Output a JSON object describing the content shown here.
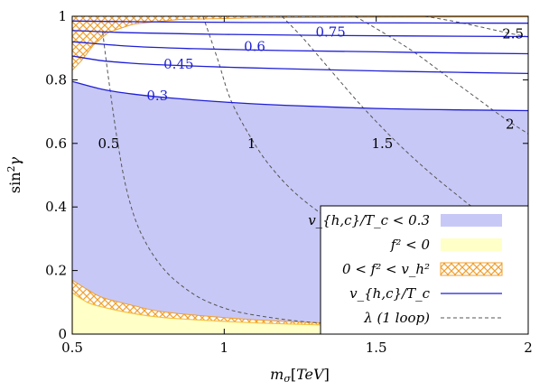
{
  "chart_data": {
    "type": "line",
    "title": "",
    "xlabel": "m_σ[TeV]",
    "ylabel": "sin²γ",
    "xlim": [
      0.5,
      2
    ],
    "ylim": [
      0,
      1
    ],
    "xticks": [
      "0.5",
      "1",
      "1.5",
      "2"
    ],
    "yticks": [
      "0",
      "0.2",
      "0.4",
      "0.6",
      "0.8",
      "1"
    ],
    "colors": {
      "excluded_fill": "#c8c8f7",
      "yellow_fill": "#ffffc8",
      "hatch": "#f0a030",
      "contour": "#1f1fd6",
      "dashed": "#555555"
    },
    "contours_v_over_Tc": [
      {
        "label": "0.3",
        "label_x": 0.78,
        "label_y": 0.75,
        "points": [
          [
            0.5,
            0.795
          ],
          [
            0.6,
            0.77
          ],
          [
            0.7,
            0.755
          ],
          [
            0.8,
            0.745
          ],
          [
            1.0,
            0.73
          ],
          [
            1.2,
            0.72
          ],
          [
            1.5,
            0.71
          ],
          [
            1.8,
            0.705
          ],
          [
            2.0,
            0.703
          ]
        ]
      },
      {
        "label": "0.45",
        "label_x": 0.85,
        "label_y": 0.85,
        "points": [
          [
            0.5,
            0.875
          ],
          [
            0.6,
            0.86
          ],
          [
            0.7,
            0.852
          ],
          [
            0.8,
            0.847
          ],
          [
            1.0,
            0.84
          ],
          [
            1.2,
            0.835
          ],
          [
            1.5,
            0.828
          ],
          [
            1.8,
            0.823
          ],
          [
            2.0,
            0.82
          ]
        ]
      },
      {
        "label": "0.6",
        "label_x": 1.1,
        "label_y": 0.905,
        "points": [
          [
            0.5,
            0.92
          ],
          [
            0.7,
            0.905
          ],
          [
            0.9,
            0.898
          ],
          [
            1.2,
            0.892
          ],
          [
            1.5,
            0.888
          ],
          [
            1.8,
            0.884
          ],
          [
            2.0,
            0.882
          ]
        ]
      },
      {
        "label": "0.75",
        "label_x": 1.35,
        "label_y": 0.95,
        "points": [
          [
            0.5,
            0.955
          ],
          [
            0.7,
            0.948
          ],
          [
            1.0,
            0.943
          ],
          [
            1.3,
            0.94
          ],
          [
            1.6,
            0.938
          ],
          [
            2.0,
            0.936
          ]
        ]
      },
      {
        "label": "",
        "label_x": 0,
        "label_y": 0,
        "points": [
          [
            0.5,
            0.985
          ],
          [
            0.8,
            0.982
          ],
          [
            1.2,
            0.98
          ],
          [
            1.6,
            0.979
          ],
          [
            2.0,
            0.978
          ]
        ]
      }
    ],
    "contours_lambda": [
      {
        "label": "0.5",
        "label_x": 0.62,
        "label_y": 0.6,
        "points": [
          [
            0.6,
            0.95
          ],
          [
            0.62,
            0.8
          ],
          [
            0.65,
            0.6
          ],
          [
            0.68,
            0.45
          ],
          [
            0.72,
            0.33
          ],
          [
            0.78,
            0.23
          ],
          [
            0.85,
            0.16
          ],
          [
            0.95,
            0.1
          ],
          [
            1.1,
            0.06
          ],
          [
            1.4,
            0.03
          ],
          [
            2.0,
            0.018
          ]
        ]
      },
      {
        "label": "1",
        "label_x": 1.09,
        "label_y": 0.6,
        "points": [
          [
            0.93,
            1.0
          ],
          [
            0.98,
            0.86
          ],
          [
            1.02,
            0.74
          ],
          [
            1.08,
            0.63
          ],
          [
            1.15,
            0.53
          ],
          [
            1.25,
            0.43
          ],
          [
            1.4,
            0.33
          ],
          [
            1.6,
            0.24
          ],
          [
            1.8,
            0.18
          ],
          [
            2.0,
            0.14
          ]
        ]
      },
      {
        "label": "1.5",
        "label_x": 1.52,
        "label_y": 0.6,
        "points": [
          [
            1.19,
            1.0
          ],
          [
            1.26,
            0.93
          ],
          [
            1.35,
            0.83
          ],
          [
            1.45,
            0.72
          ],
          [
            1.55,
            0.62
          ],
          [
            1.65,
            0.53
          ],
          [
            1.75,
            0.45
          ],
          [
            1.85,
            0.38
          ],
          [
            2.0,
            0.32
          ]
        ]
      },
      {
        "label": "2",
        "label_x": 1.94,
        "label_y": 0.66,
        "points": [
          [
            1.43,
            1.0
          ],
          [
            1.52,
            0.95
          ],
          [
            1.62,
            0.89
          ],
          [
            1.72,
            0.82
          ],
          [
            1.82,
            0.75
          ],
          [
            1.92,
            0.68
          ],
          [
            2.0,
            0.63
          ]
        ]
      },
      {
        "label": "2.5",
        "label_x": 1.95,
        "label_y": 0.945,
        "points": [
          [
            1.66,
            1.0
          ],
          [
            1.75,
            0.985
          ],
          [
            1.85,
            0.965
          ],
          [
            1.93,
            0.948
          ],
          [
            2.0,
            0.935
          ]
        ]
      }
    ],
    "excluded_region_top": [
      [
        0.5,
        0.795
      ],
      [
        0.6,
        0.77
      ],
      [
        0.7,
        0.755
      ],
      [
        0.8,
        0.745
      ],
      [
        1.0,
        0.73
      ],
      [
        1.2,
        0.72
      ],
      [
        1.5,
        0.71
      ],
      [
        1.8,
        0.705
      ],
      [
        2.0,
        0.703
      ]
    ],
    "yellow_region_top": [
      [
        0.5,
        0.13
      ],
      [
        0.55,
        0.1
      ],
      [
        0.6,
        0.085
      ],
      [
        0.7,
        0.065
      ],
      [
        0.8,
        0.052
      ],
      [
        1.0,
        0.04
      ],
      [
        1.2,
        0.032
      ],
      [
        1.5,
        0.025
      ],
      [
        2.0,
        0.02
      ]
    ],
    "hatch_lower_top": [
      [
        0.5,
        0.17
      ],
      [
        0.55,
        0.14
      ],
      [
        0.6,
        0.115
      ],
      [
        0.7,
        0.09
      ],
      [
        0.8,
        0.07
      ],
      [
        1.0,
        0.052
      ],
      [
        1.2,
        0.04
      ],
      [
        1.5,
        0.03
      ],
      [
        2.0,
        0.023
      ]
    ],
    "hatch_upper_left": [
      [
        0.5,
        1.0
      ],
      [
        0.5,
        0.83
      ],
      [
        0.53,
        0.86
      ],
      [
        0.57,
        0.91
      ],
      [
        0.62,
        0.95
      ],
      [
        0.7,
        0.975
      ],
      [
        0.85,
        0.99
      ],
      [
        1.1,
        0.995
      ],
      [
        1.5,
        0.997
      ],
      [
        2.0,
        0.998
      ],
      [
        2.0,
        1.0
      ]
    ],
    "legend": {
      "placement": "bottom-right",
      "entries": [
        {
          "label": "v_{h,c}/T_c < 0.3",
          "kind": "fill"
        },
        {
          "label": "f² < 0",
          "kind": "yellow"
        },
        {
          "label": "0 < f² < v_h²",
          "kind": "hatch"
        },
        {
          "label": "v_{h,c}/T_c",
          "kind": "line"
        },
        {
          "label": "λ (1 loop)",
          "kind": "dashed"
        }
      ]
    }
  }
}
